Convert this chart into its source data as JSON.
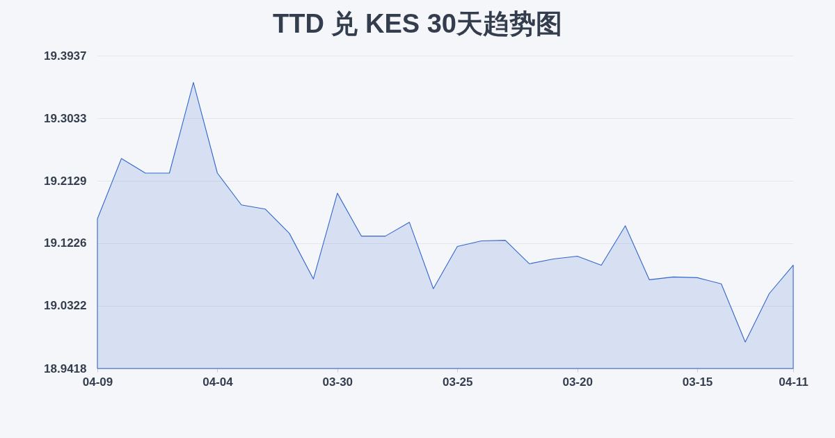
{
  "chart_data": {
    "type": "area",
    "title": "TTD 兑 KES 30天趋势图",
    "categories": [
      "04-09",
      null,
      null,
      null,
      null,
      "04-04",
      null,
      null,
      null,
      null,
      "03-30",
      null,
      null,
      null,
      null,
      "03-25",
      null,
      null,
      null,
      null,
      "03-20",
      null,
      null,
      null,
      null,
      "03-15",
      null,
      null,
      null,
      "04-11"
    ],
    "series": [
      {
        "color": "#3366cc",
        "values": [
          19.158,
          19.245,
          19.224,
          19.224,
          19.355,
          19.224,
          19.178,
          19.172,
          19.137,
          19.071,
          19.195,
          19.133,
          19.133,
          19.153,
          19.057,
          19.118,
          19.126,
          19.127,
          19.093,
          19.1,
          19.104,
          19.091,
          19.148,
          19.07,
          19.074,
          19.073,
          19.064,
          18.98,
          19.05,
          19.091
        ]
      }
    ],
    "ylim": [
      18.9418,
      19.3937
    ],
    "yticks": [
      18.9418,
      19.0322,
      19.1226,
      19.2129,
      19.3033,
      19.3937
    ],
    "grid": "y"
  }
}
